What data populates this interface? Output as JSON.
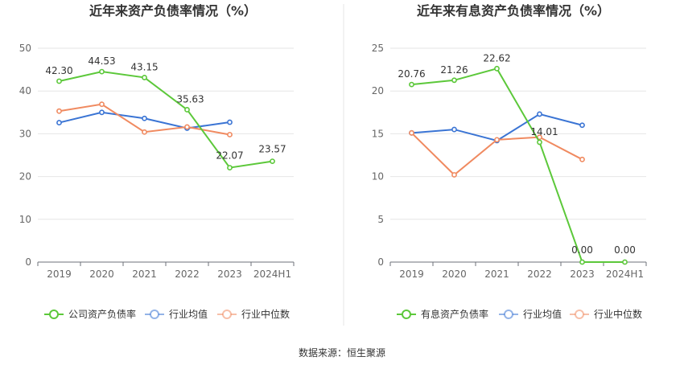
{
  "source_text": "数据来源：恒生聚源",
  "chart_data": [
    {
      "type": "line",
      "title": "近年来资产负债率情况（%）",
      "categories": [
        "2019",
        "2020",
        "2021",
        "2022",
        "2023",
        "2024H1"
      ],
      "ylim": [
        0,
        50
      ],
      "yticks": [
        0,
        10,
        20,
        30,
        40,
        50
      ],
      "grid": true,
      "legend": "bottom",
      "series": [
        {
          "name": "公司资产负债率",
          "color": "#5cc83a",
          "labeled": true,
          "values": [
            42.3,
            44.53,
            43.15,
            35.63,
            22.07,
            23.57
          ],
          "labels": [
            "42.30",
            "44.53",
            "43.15",
            "35.63",
            "22.07",
            "23.57"
          ]
        },
        {
          "name": "行业均值",
          "color": "#3a74d4",
          "labeled": false,
          "values": [
            32.6,
            35.0,
            33.6,
            31.3,
            32.7,
            null
          ]
        },
        {
          "name": "行业中位数",
          "color": "#f08a60",
          "labeled": false,
          "values": [
            35.3,
            36.9,
            30.4,
            31.6,
            29.8,
            null
          ]
        }
      ]
    },
    {
      "type": "line",
      "title": "近年来有息资产负债率情况（%）",
      "categories": [
        "2019",
        "2020",
        "2021",
        "2022",
        "2023",
        "2024H1"
      ],
      "ylim": [
        0,
        25
      ],
      "yticks": [
        0,
        5,
        10,
        15,
        20,
        25
      ],
      "grid": true,
      "legend": "bottom",
      "series": [
        {
          "name": "有息资产负债率",
          "color": "#5cc83a",
          "labeled": true,
          "values": [
            20.76,
            21.26,
            22.62,
            14.01,
            0.0,
            0.0
          ],
          "labels": [
            "20.76",
            "21.26",
            "22.62",
            "14.01",
            "0.00",
            "0.00"
          ]
        },
        {
          "name": "行业均值",
          "color": "#3a74d4",
          "labeled": false,
          "values": [
            15.1,
            15.5,
            14.2,
            17.3,
            16.0,
            null
          ]
        },
        {
          "name": "行业中位数",
          "color": "#f08a60",
          "labeled": false,
          "values": [
            15.1,
            10.2,
            14.3,
            14.6,
            12.0,
            null
          ]
        }
      ]
    }
  ]
}
